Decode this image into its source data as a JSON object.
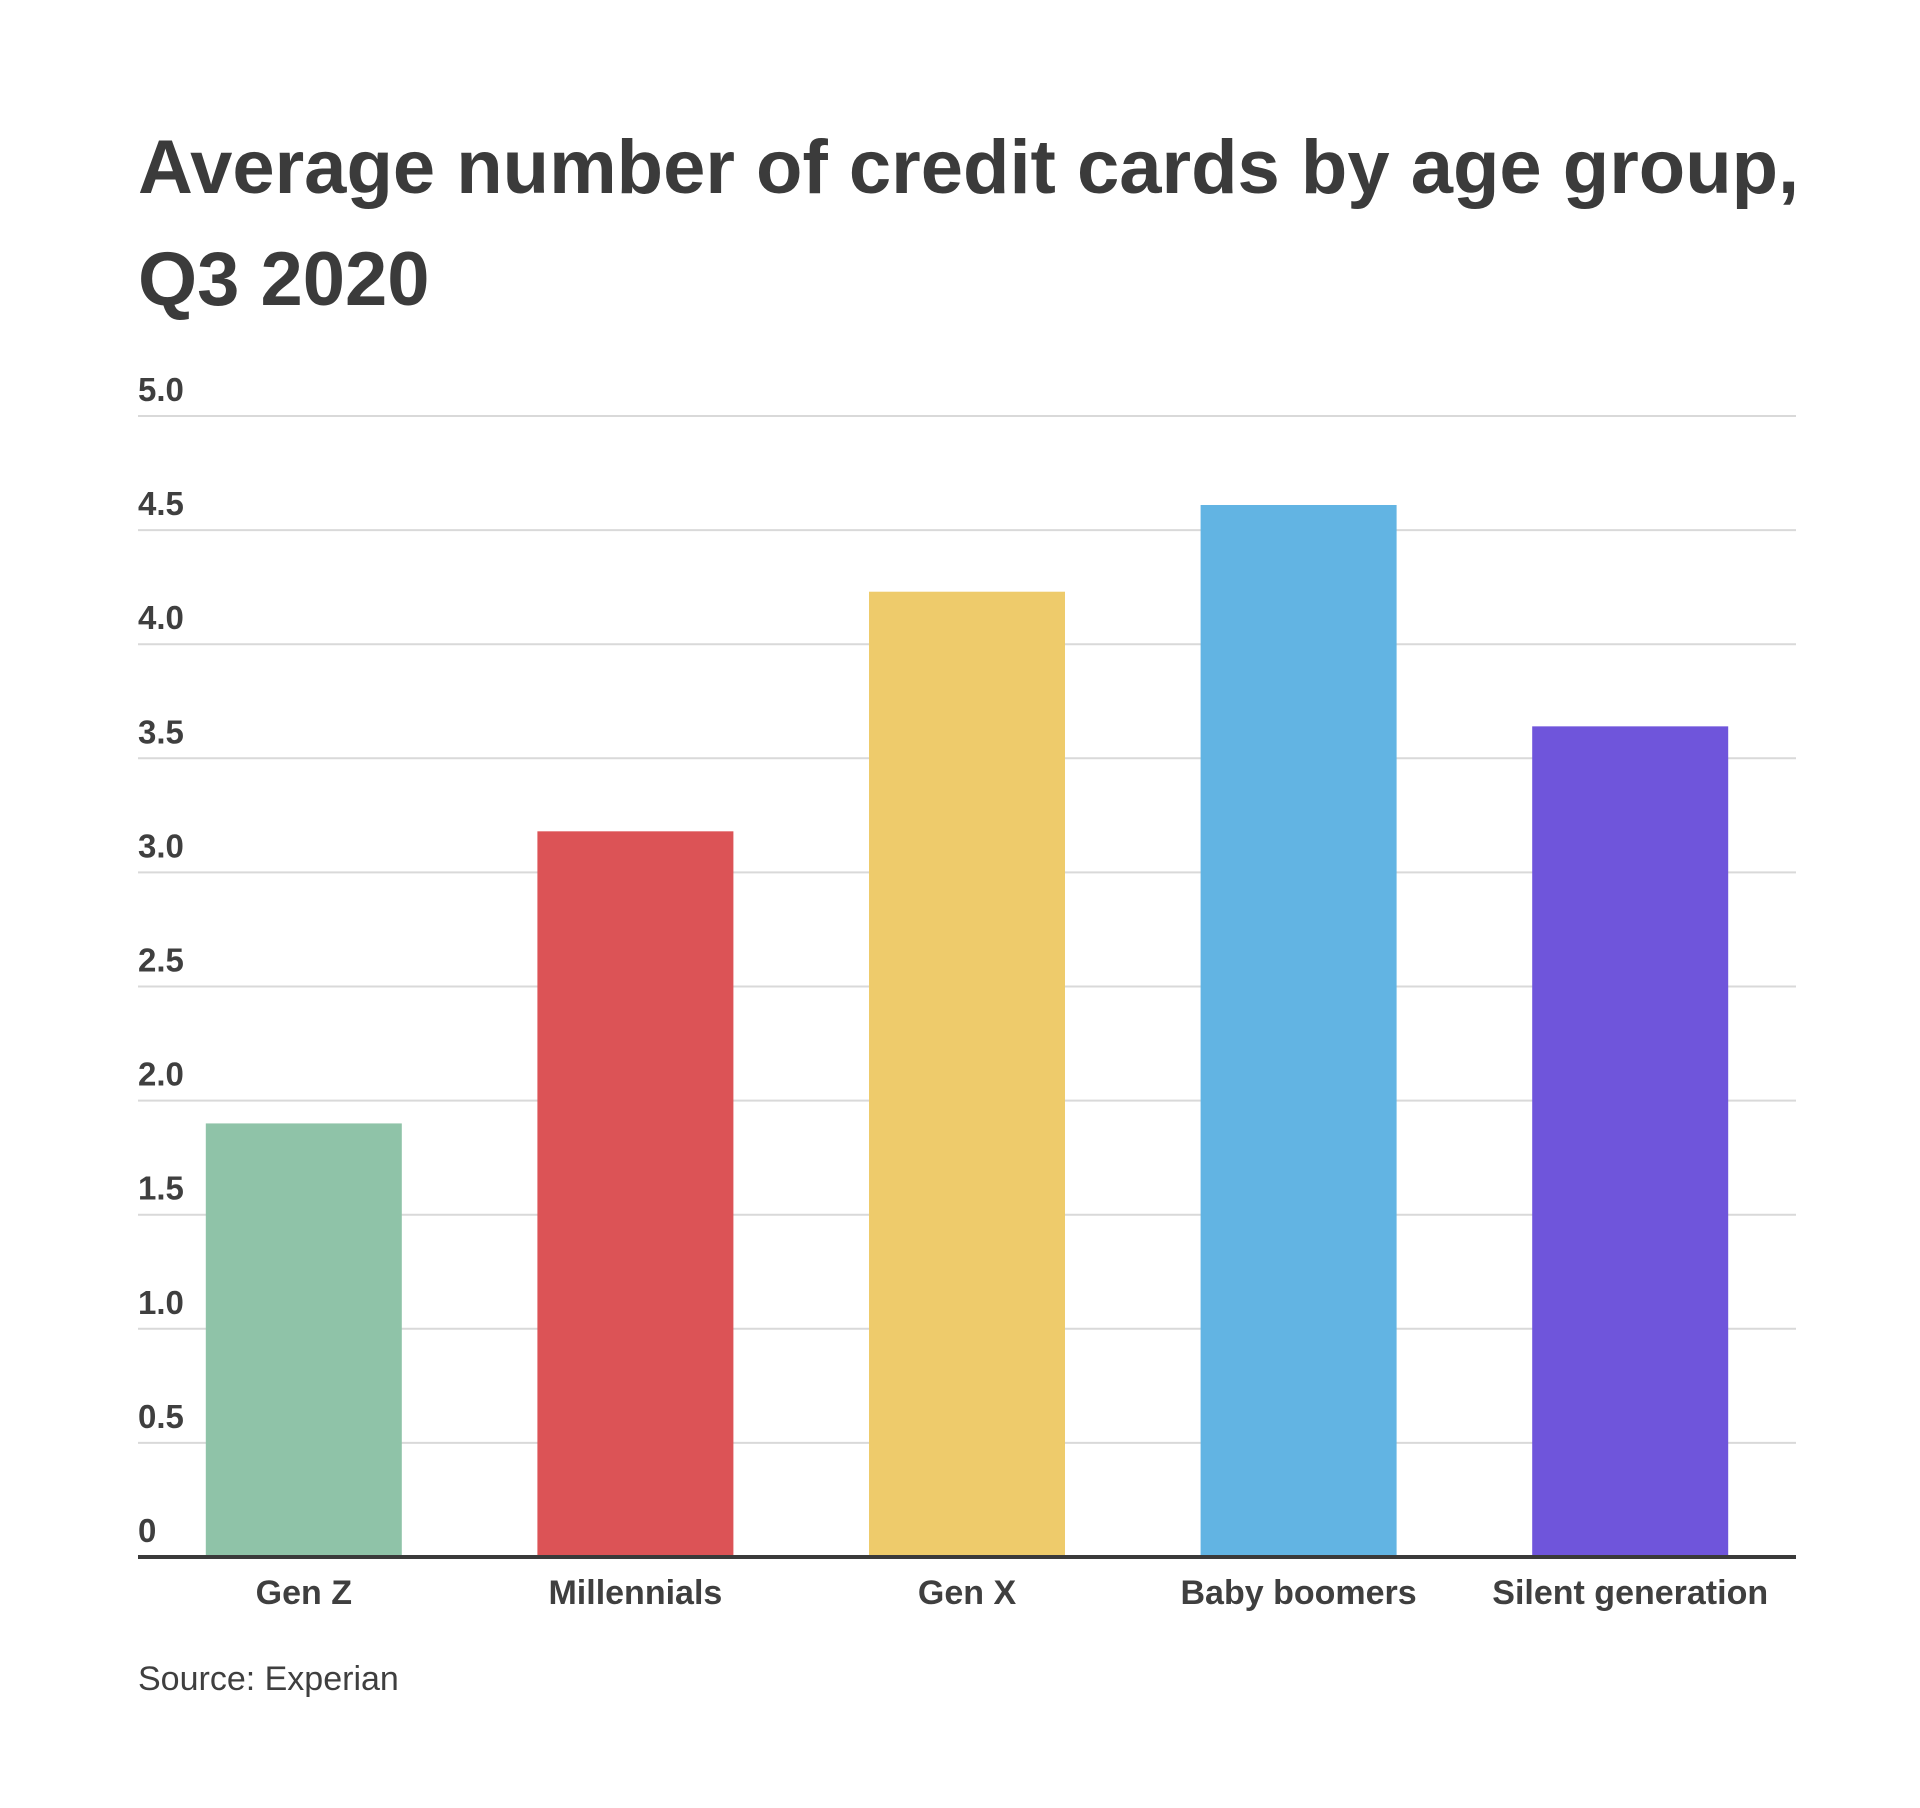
{
  "chart_data": {
    "type": "bar",
    "title": "Average number of credit cards by age group, Q3 2020",
    "categories": [
      "Gen Z",
      "Millennials",
      "Gen X",
      "Baby boomers",
      "Silent generation"
    ],
    "values": [
      1.9,
      3.18,
      4.23,
      4.61,
      3.64
    ],
    "colors": [
      "#8fc3a8",
      "#dc5356",
      "#eecb6b",
      "#62b4e3",
      "#6f55db"
    ],
    "ylim": [
      0,
      5.0
    ],
    "yticks": [
      0,
      0.5,
      1.0,
      1.5,
      2.0,
      2.5,
      3.0,
      3.5,
      4.0,
      4.5,
      5.0
    ],
    "ytick_labels": [
      "0",
      "0.5",
      "1.0",
      "1.5",
      "2.0",
      "2.5",
      "3.0",
      "3.5",
      "4.0",
      "4.5",
      "5.0"
    ],
    "grid": true,
    "xlabel": "",
    "ylabel": "",
    "source": "Source: Experian"
  }
}
